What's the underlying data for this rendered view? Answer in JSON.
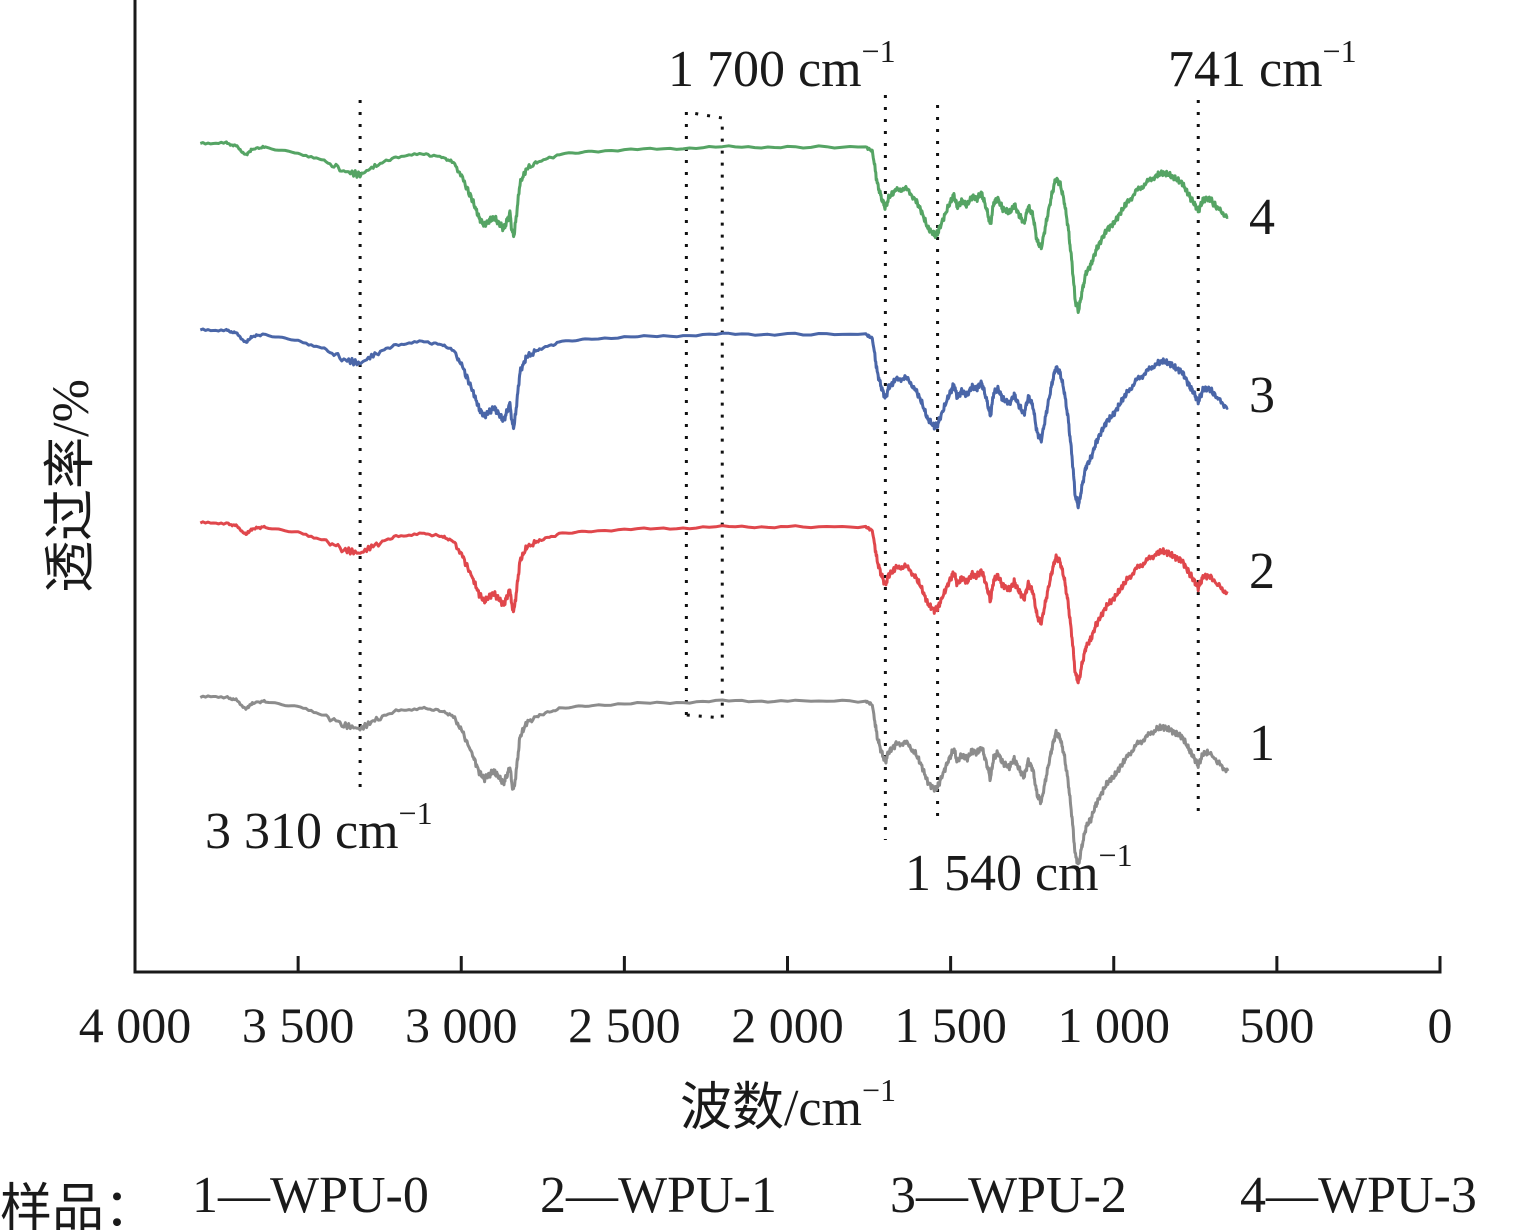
{
  "chart_data": {
    "type": "line",
    "xlabel": "波数/cm",
    "xlabel_sup": "−1",
    "ylabel": "透过率/%",
    "xlim": [
      4000,
      0
    ],
    "x_ticks": [
      "4 000",
      "3 500",
      "3 000",
      "2 500",
      "2 000",
      "1 500",
      "1 000",
      "500",
      "0"
    ],
    "x_tick_values": [
      4000,
      3500,
      3000,
      2500,
      2000,
      1500,
      1000,
      500,
      0
    ],
    "grid": false,
    "series": [
      {
        "name": "1",
        "color": "#8c8c8c"
      },
      {
        "name": "2",
        "color": "#e0474c"
      },
      {
        "name": "3",
        "color": "#4a66a8"
      },
      {
        "name": "4",
        "color": "#55a464"
      }
    ],
    "annotations": [
      {
        "text": "3 310 cm",
        "sup": "−1",
        "wavenumber": 3310
      },
      {
        "text": "1 700 cm",
        "sup": "−1",
        "wavenumber": 1700
      },
      {
        "text": "1 540 cm",
        "sup": "−1",
        "wavenumber": 1540
      },
      {
        "text": "741 cm",
        "sup": "−1",
        "wavenumber": 741
      }
    ],
    "dotted_box": {
      "x_from": 2310,
      "x_to": 2200
    }
  },
  "caption": {
    "prefix": "样品：",
    "items": [
      "1—WPU-0",
      "2—WPU-1",
      "3—WPU-2",
      "4—WPU-3"
    ]
  }
}
